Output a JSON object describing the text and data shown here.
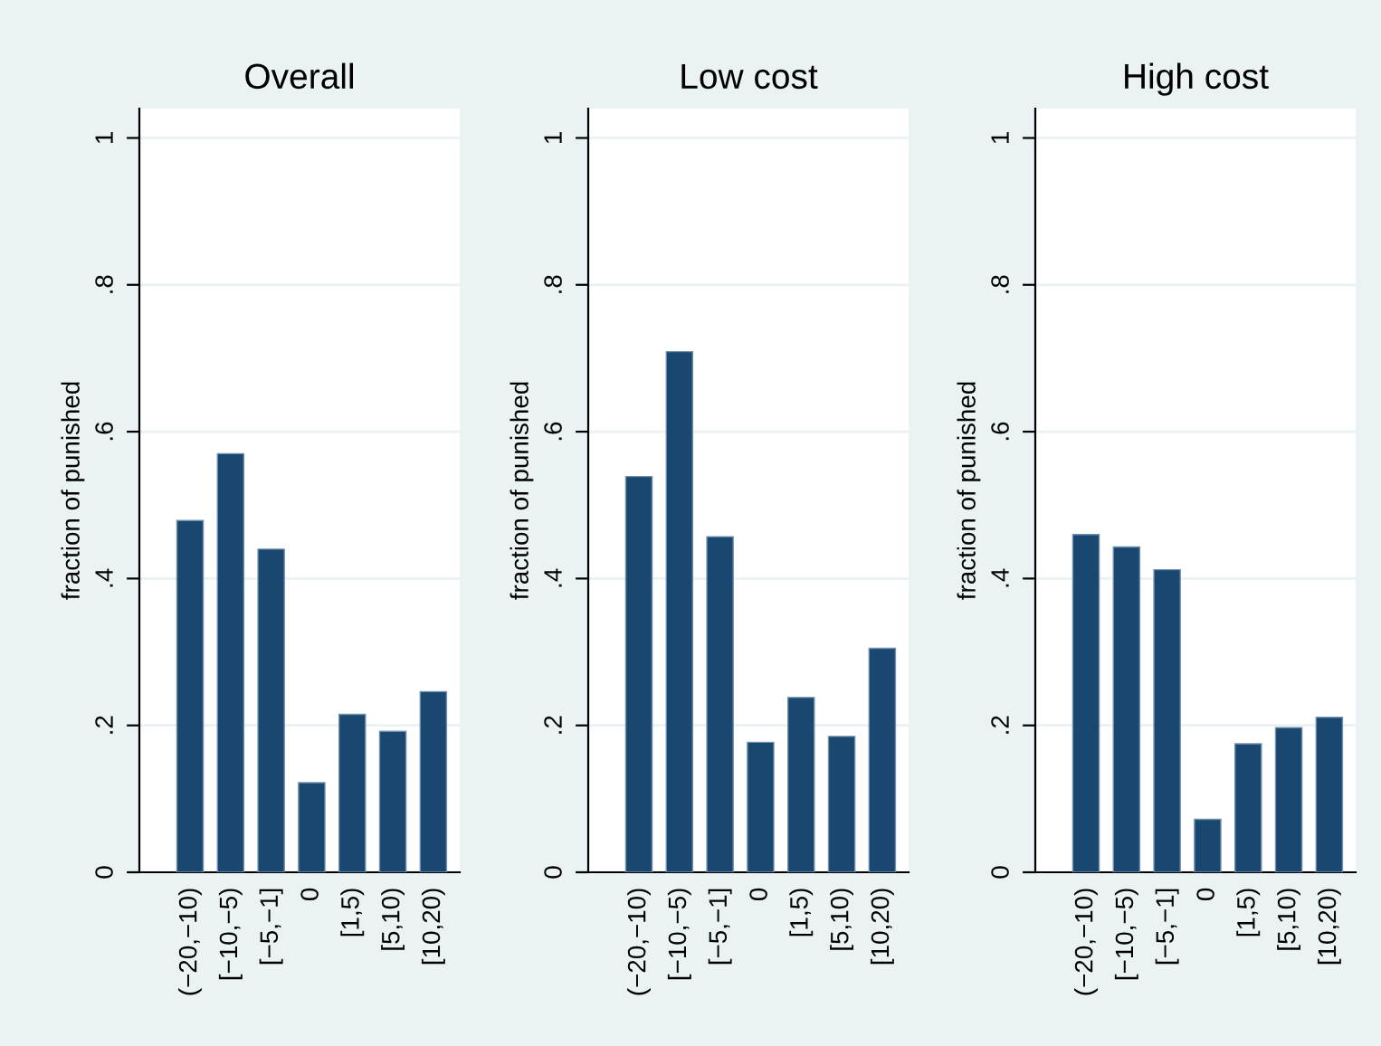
{
  "chart_data": [
    {
      "type": "bar",
      "title": "Overall",
      "ylabel": "fraction of punished",
      "categories": [
        "(−20,−10)",
        "[−10,−5)",
        "[−5,−1]",
        "0",
        "[1,5)",
        "[5,10)",
        "[10,20)"
      ],
      "color": "#1a476f",
      "values": [
        0.479,
        0.57,
        0.44,
        0.122,
        0.215,
        0.192,
        0.246
      ],
      "ylim": [
        0,
        1.04
      ],
      "yticks": [
        0,
        {
          "value": 0.2,
          "label": ".2"
        },
        {
          "value": 0.4,
          "label": ".4"
        },
        {
          "value": 0.6,
          "label": ".6"
        },
        {
          "value": 0.8,
          "label": ".8"
        },
        1
      ],
      "grid": "y"
    },
    {
      "type": "bar",
      "title": "Low cost",
      "ylabel": "fraction of punished",
      "categories": [
        "(−20,−10)",
        "[−10,−5)",
        "[−5,−1]",
        "0",
        "[1,5)",
        "[5,10)",
        "[10,20)"
      ],
      "color": "#1a476f",
      "values": [
        0.539,
        0.709,
        0.457,
        0.177,
        0.238,
        0.185,
        0.305
      ],
      "ylim": [
        0,
        1.04
      ],
      "yticks": [
        0,
        {
          "value": 0.2,
          "label": ".2"
        },
        {
          "value": 0.4,
          "label": ".4"
        },
        {
          "value": 0.6,
          "label": ".6"
        },
        {
          "value": 0.8,
          "label": ".8"
        },
        1
      ],
      "grid": "y"
    },
    {
      "type": "bar",
      "title": "High cost",
      "ylabel": "fraction of punished",
      "categories": [
        "(−20,−10)",
        "[−10,−5)",
        "[−5,−1]",
        "0",
        "[1,5)",
        "[5,10)",
        "[10,20)"
      ],
      "color": "#1a476f",
      "values": [
        0.46,
        0.443,
        0.412,
        0.072,
        0.175,
        0.197,
        0.211
      ],
      "ylim": [
        0,
        1.04
      ],
      "yticks": [
        0,
        {
          "value": 0.2,
          "label": ".2"
        },
        {
          "value": 0.4,
          "label": ".4"
        },
        {
          "value": 0.6,
          "label": ".6"
        },
        {
          "value": 0.8,
          "label": ".8"
        },
        1
      ],
      "grid": "y"
    }
  ]
}
